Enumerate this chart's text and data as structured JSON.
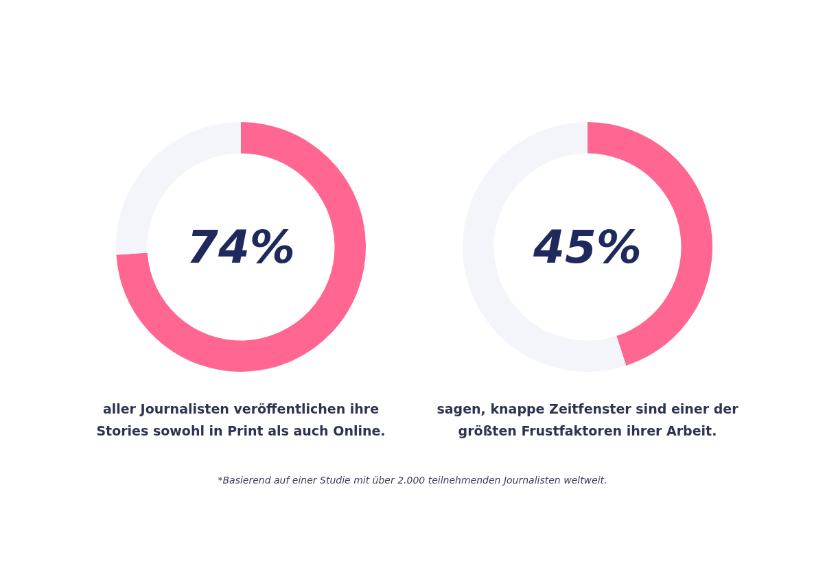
{
  "chart_data": [
    {
      "type": "donut",
      "title": "74%",
      "subtitle": "aller Journalisten veröffentlichen ihre\nStories sowohl in Print als auch Online.",
      "categories": [
        null,
        null
      ],
      "values": [
        74,
        26
      ],
      "colors": [
        "#ff6692",
        "#f4f5fa"
      ]
    },
    {
      "type": "donut",
      "title": "45%",
      "subtitle": "sagen, knappe Zeitfenster sind einer der\ngrößten Frustfaktoren ihrer Arbeit.",
      "categories": [
        null,
        null
      ],
      "values": [
        45,
        55
      ],
      "colors": [
        "#ff6692",
        "#f4f5fa"
      ],
      "annotations": [
        "*Basierend auf einer Studie mit über 2.000 teilnehmenden Journalisten weltweit."
      ]
    }
  ]
}
